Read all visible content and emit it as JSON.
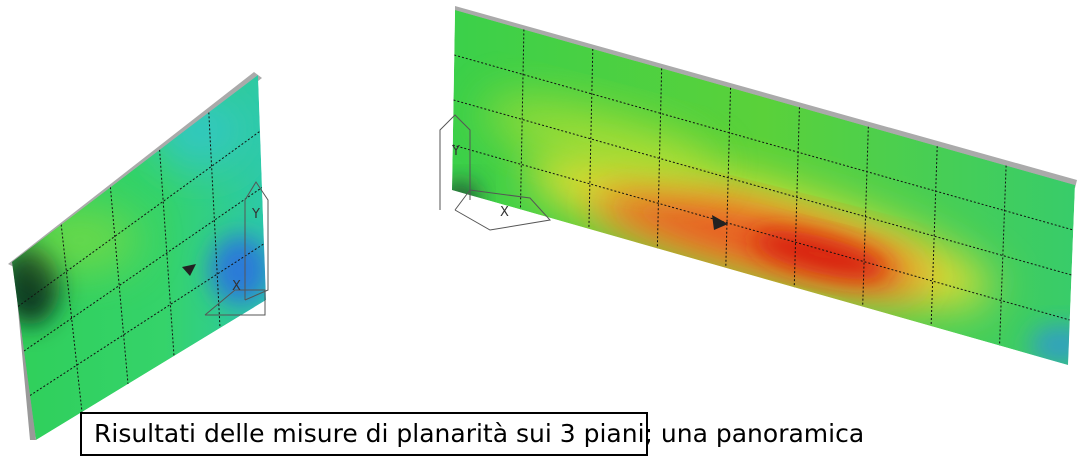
{
  "caption": "Risultati delle misure di planarità sui 3 piani; una panoramica",
  "left_view": {
    "x_axis_label": "X",
    "y_axis_label": "Y"
  },
  "right_view": {
    "x_axis_label": "X",
    "y_axis_label": "Y"
  }
}
